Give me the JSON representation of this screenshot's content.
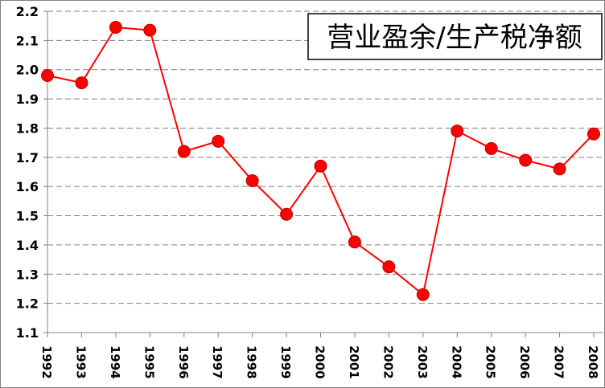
{
  "chart_data": {
    "type": "line",
    "title": "营业盈余/生产税净额",
    "xlabel": "",
    "ylabel": "",
    "ylim": [
      1.1,
      2.2
    ],
    "yticks": [
      "1.1",
      "1.2",
      "1.3",
      "1.4",
      "1.5",
      "1.6",
      "1.7",
      "1.8",
      "1.9",
      "2.0",
      "2.1",
      "2.2"
    ],
    "categories": [
      "1992",
      "1993",
      "1994",
      "1995",
      "1996",
      "1997",
      "1998",
      "1999",
      "2000",
      "2001",
      "2002",
      "2003",
      "2004",
      "2005",
      "2006",
      "2007",
      "2008"
    ],
    "series": [
      {
        "name": "",
        "color": "#ff0000",
        "values": [
          1.98,
          1.955,
          2.145,
          2.135,
          1.72,
          1.755,
          1.62,
          1.505,
          1.67,
          1.41,
          1.325,
          1.23,
          1.79,
          1.73,
          1.69,
          1.66,
          1.78
        ]
      }
    ],
    "grid": "horizontal-dashed",
    "legend": "none"
  }
}
